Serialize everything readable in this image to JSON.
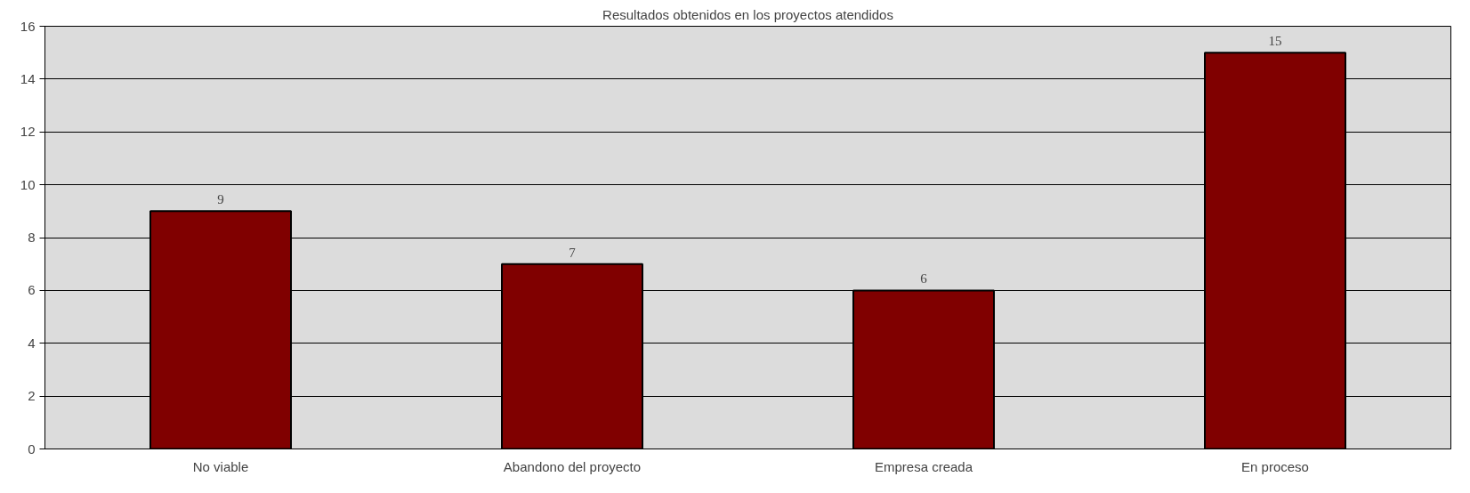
{
  "chart_data": {
    "type": "bar",
    "title": "Resultados obtenidos en los proyectos atendidos",
    "categories": [
      "No viable",
      "Abandono del proyecto",
      "Empresa creada",
      "En proceso"
    ],
    "values": [
      9,
      7,
      6,
      15
    ],
    "color": "#800000",
    "ylim": [
      0,
      16
    ],
    "yticks": [
      0,
      2,
      4,
      6,
      8,
      10,
      12,
      14,
      16
    ],
    "grid": "y",
    "data_labels": true
  }
}
